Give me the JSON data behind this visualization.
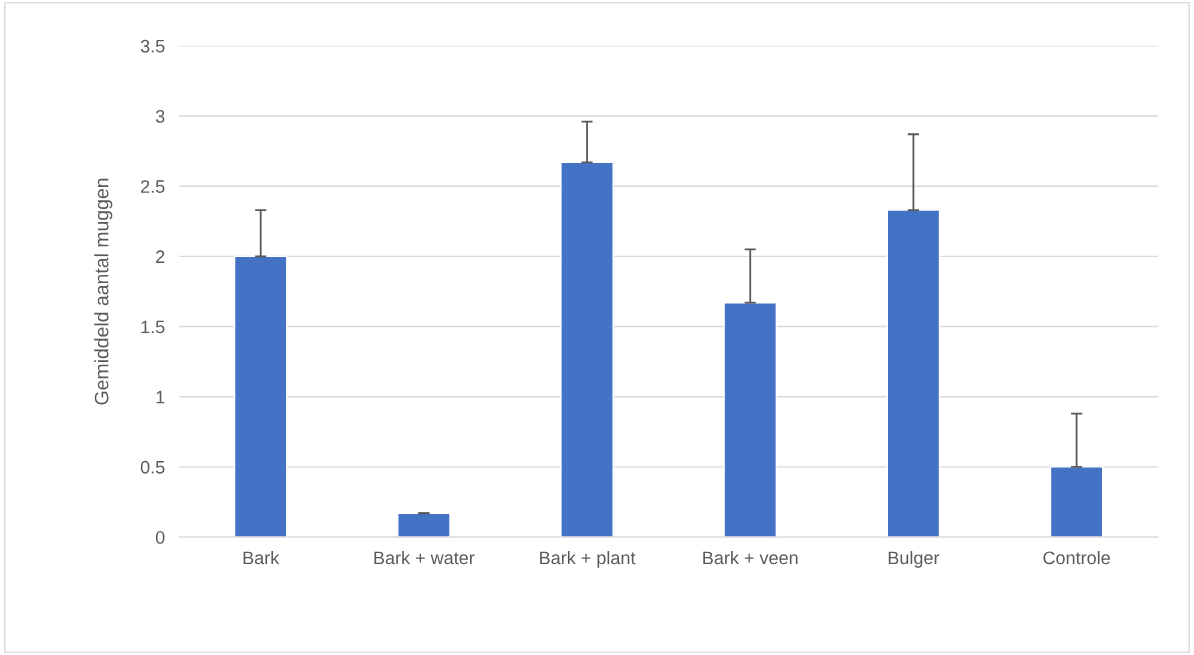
{
  "chart_data": {
    "type": "bar",
    "ylabel": "Gemiddeld aantal muggen",
    "categories": [
      "Bark",
      "Bark + water",
      "Bark + plant",
      "Bark + veen",
      "Bulger",
      "Controle"
    ],
    "values": [
      2.0,
      0.17,
      2.67,
      1.67,
      2.33,
      0.5
    ],
    "errors": [
      [
        2.0,
        2.33
      ],
      [
        0.17,
        0.17
      ],
      [
        2.67,
        2.96
      ],
      [
        1.67,
        2.05
      ],
      [
        2.33,
        2.87
      ],
      [
        0.5,
        0.88
      ]
    ],
    "color": "#4472c4",
    "ylim": [
      0,
      3.5
    ],
    "yticks": [
      0,
      0.5,
      1,
      1.5,
      2,
      2.5,
      3,
      3.5
    ],
    "grid": "y",
    "legend": false
  }
}
